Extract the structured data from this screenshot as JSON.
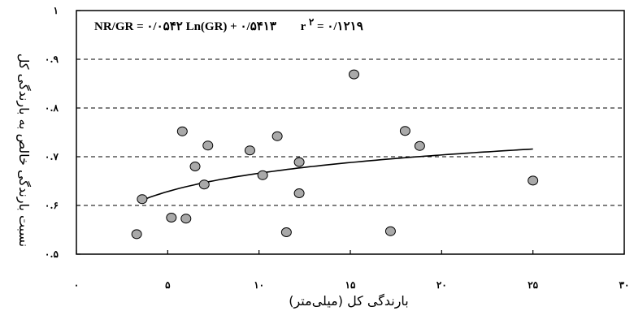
{
  "chart_data": {
    "type": "scatter",
    "xlabel": "بارندگی کل (میلی‌متر)",
    "ylabel": "نسبت بارندگی خالص به بارندگی کل",
    "xlim": [
      0,
      30
    ],
    "ylim": [
      0.5,
      1.0
    ],
    "x_ticks": [
      0,
      5,
      10,
      15,
      20,
      25,
      30
    ],
    "x_tick_labels": [
      "۰",
      "۵",
      "۱۰",
      "۱۵",
      "۲۰",
      "۲۵",
      "۳۰"
    ],
    "y_ticks": [
      0.5,
      0.6,
      0.7,
      0.8,
      0.9,
      1.0
    ],
    "y_tick_labels": [
      "۰.۵",
      "۰.۶",
      "۰.۷",
      "۰.۸",
      "۰.۹",
      "۱"
    ],
    "grid": "horizontal dashed",
    "annotation": {
      "part1": "NR/GR = ۰/۰۵۴۲ Ln(GR) + ۰/۵۴۱۳",
      "part2": "r",
      "sup": "۲",
      "part3": " = ۰/۱۲۱۹"
    },
    "trendline": {
      "type": "logarithmic",
      "a": 0.0542,
      "b": 0.5413,
      "x_range": [
        3.5,
        25
      ]
    },
    "points": [
      {
        "x": 3.3,
        "y": 0.541
      },
      {
        "x": 3.6,
        "y": 0.613
      },
      {
        "x": 5.2,
        "y": 0.575
      },
      {
        "x": 5.8,
        "y": 0.752
      },
      {
        "x": 6.0,
        "y": 0.573
      },
      {
        "x": 6.5,
        "y": 0.68
      },
      {
        "x": 7.0,
        "y": 0.643
      },
      {
        "x": 7.2,
        "y": 0.723
      },
      {
        "x": 9.5,
        "y": 0.713
      },
      {
        "x": 10.2,
        "y": 0.662
      },
      {
        "x": 11.0,
        "y": 0.742
      },
      {
        "x": 11.5,
        "y": 0.545
      },
      {
        "x": 12.2,
        "y": 0.689
      },
      {
        "x": 12.2,
        "y": 0.625
      },
      {
        "x": 15.2,
        "y": 0.869
      },
      {
        "x": 17.2,
        "y": 0.547
      },
      {
        "x": 18.0,
        "y": 0.753
      },
      {
        "x": 18.8,
        "y": 0.722
      },
      {
        "x": 25.0,
        "y": 0.651
      }
    ],
    "marker_fill": "#a9a9a9",
    "marker_stroke": "#000000",
    "line_color": "#000000"
  }
}
